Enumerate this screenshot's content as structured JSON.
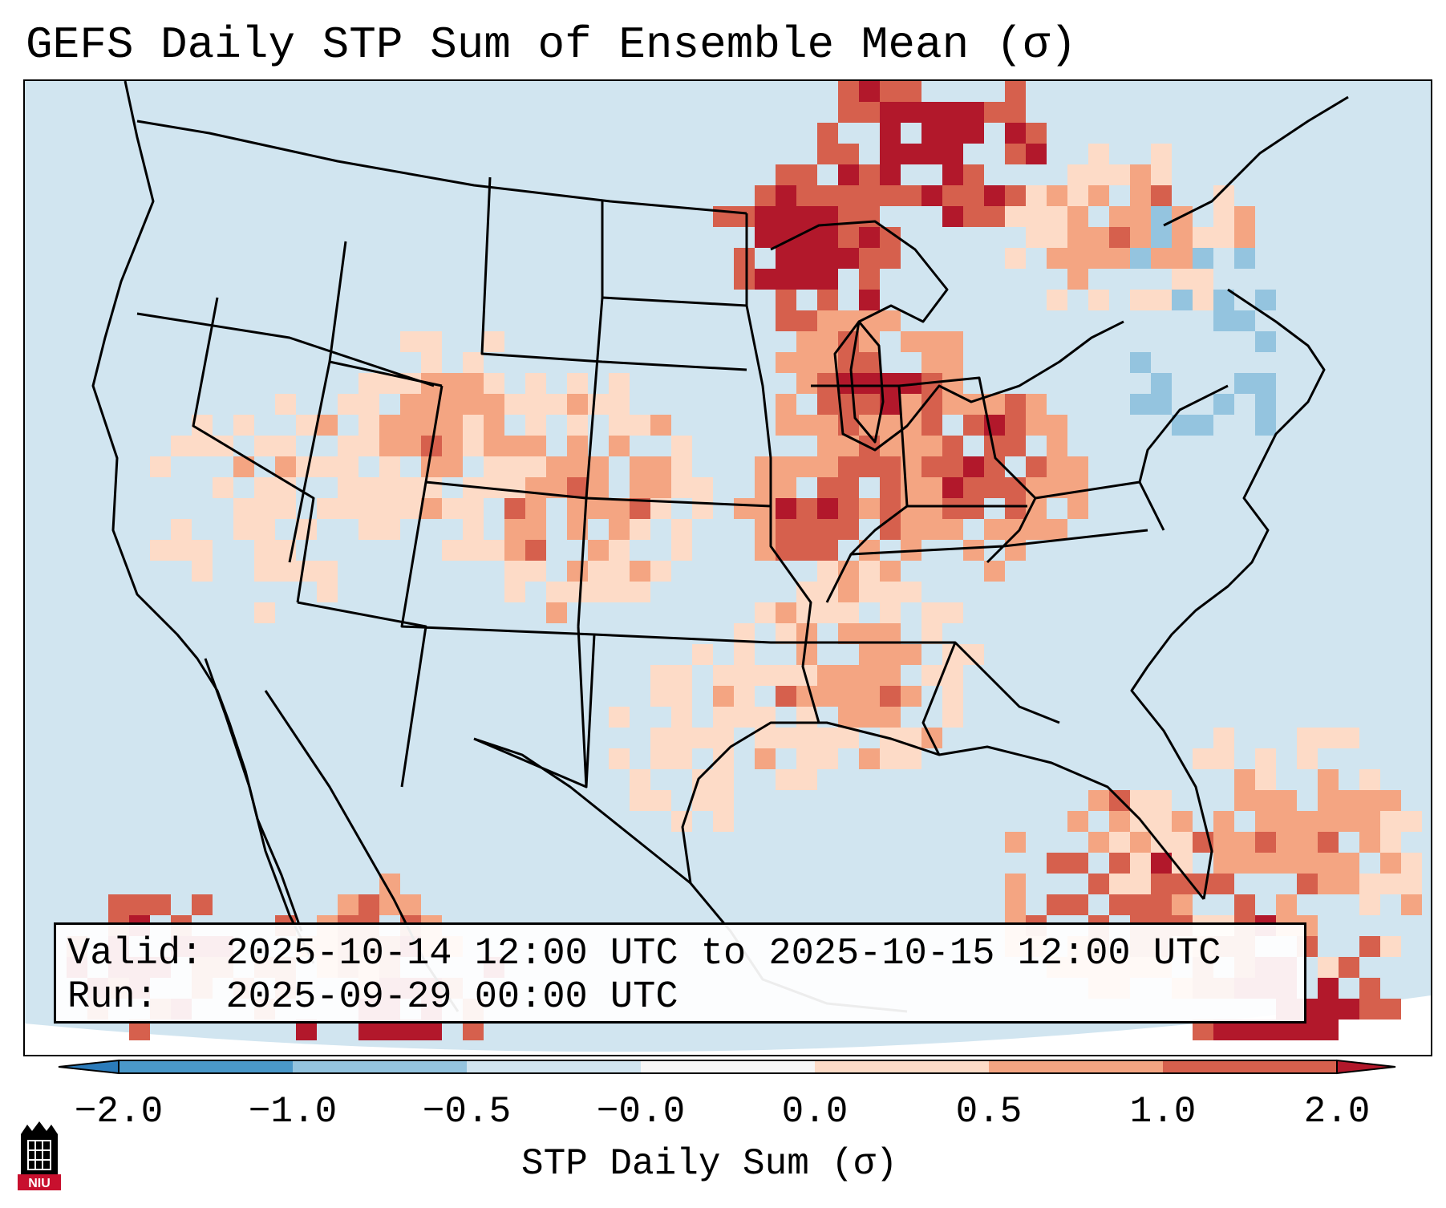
{
  "title": "GEFS Daily STP Sum of Ensemble Mean (σ)",
  "info": {
    "valid_label": "Valid:",
    "valid_value": "2025-10-14 12:00 UTC to 2025-10-15 12:00 UTC",
    "run_label": "Run:",
    "run_value": "2025-09-29 00:00 UTC"
  },
  "colorbar": {
    "label": "STP Daily Sum (σ)",
    "ticks": [
      "−2.0",
      "−1.0",
      "−0.5",
      "−0.0",
      "0.0",
      "0.5",
      "1.0",
      "2.0"
    ],
    "colors": [
      "#2b7bba",
      "#4a98c9",
      "#94c4df",
      "#d1e5f0",
      "#fddbc7",
      "#f4a582",
      "#d6604d",
      "#b2182b"
    ],
    "extend": "both"
  },
  "map": {
    "ocean_color": "#d1e5f0",
    "land_color": "#d1e5f0",
    "outside_color": "#ffffff",
    "border_color": "#000000"
  },
  "logo": {
    "text": "NIU",
    "colors": [
      "#c8102e",
      "#000000"
    ]
  }
}
